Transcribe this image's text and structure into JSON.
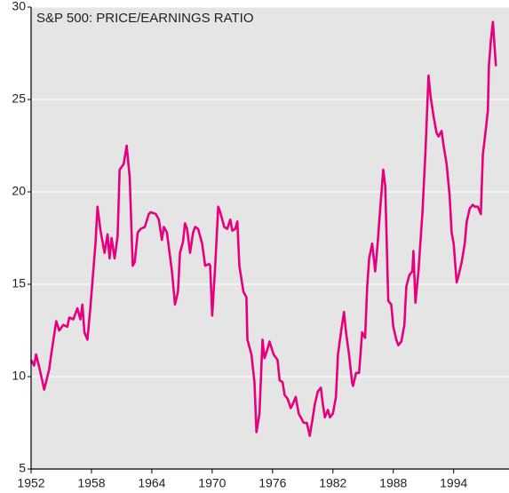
{
  "chart_data": {
    "type": "line",
    "title": "S&P 500: PRICE/EARNINGS RATIO",
    "x": [
      1952.0,
      1952.3,
      1952.5,
      1952.9,
      1953.3,
      1953.8,
      1954.0,
      1954.5,
      1954.8,
      1955.2,
      1955.6,
      1955.8,
      1956.2,
      1956.6,
      1956.9,
      1957.1,
      1957.3,
      1957.6,
      1957.9,
      1958.4,
      1958.6,
      1958.9,
      1959.3,
      1959.6,
      1959.8,
      1960.0,
      1960.3,
      1960.6,
      1960.8,
      1961.2,
      1961.5,
      1961.8,
      1962.1,
      1962.3,
      1962.6,
      1962.9,
      1963.3,
      1963.7,
      1963.9,
      1964.4,
      1964.7,
      1965.0,
      1965.2,
      1965.5,
      1966.0,
      1966.3,
      1966.6,
      1966.8,
      1967.1,
      1967.3,
      1967.5,
      1967.8,
      1968.1,
      1968.3,
      1968.6,
      1969.0,
      1969.3,
      1969.7,
      1969.8,
      1970.0,
      1970.3,
      1970.6,
      1970.8,
      1971.2,
      1971.5,
      1971.8,
      1972.0,
      1972.3,
      1972.5,
      1972.7,
      1973.1,
      1973.4,
      1973.5,
      1973.9,
      1974.2,
      1974.4,
      1974.7,
      1975.0,
      1975.2,
      1975.5,
      1975.7,
      1976.1,
      1976.5,
      1976.7,
      1977.0,
      1977.2,
      1977.5,
      1977.8,
      1978.0,
      1978.3,
      1978.6,
      1978.8,
      1979.1,
      1979.4,
      1979.7,
      1980.0,
      1980.2,
      1980.5,
      1980.8,
      1981.0,
      1981.2,
      1981.5,
      1981.7,
      1982.0,
      1982.3,
      1982.5,
      1982.8,
      1983.1,
      1983.3,
      1983.6,
      1983.9,
      1984.0,
      1984.3,
      1984.6,
      1984.9,
      1985.2,
      1985.4,
      1985.6,
      1985.9,
      1986.2,
      1986.4,
      1986.7,
      1987.0,
      1987.2,
      1987.5,
      1987.8,
      1988.0,
      1988.3,
      1988.5,
      1988.8,
      1989.1,
      1989.3,
      1989.6,
      1989.9,
      1990.0,
      1990.2,
      1990.5,
      1990.8,
      1990.9,
      1991.2,
      1991.5,
      1991.7,
      1992.0,
      1992.3,
      1992.5,
      1992.8,
      1993.0,
      1993.3,
      1993.6,
      1993.8,
      1994.0,
      1994.3,
      1994.5,
      1994.8,
      1995.1,
      1995.3,
      1995.6,
      1995.9,
      1996.1,
      1996.4,
      1996.7,
      1996.9,
      1997.2,
      1997.4,
      1997.5,
      1997.7,
      1997.9,
      1998.2
    ],
    "series": [
      {
        "name": "P/E ratio",
        "color": "#e6007e",
        "values": [
          10.9,
          10.6,
          11.2,
          10.3,
          9.3,
          10.4,
          11.2,
          13.0,
          12.5,
          12.8,
          12.7,
          13.2,
          13.1,
          13.7,
          13.1,
          13.9,
          12.4,
          12.0,
          13.8,
          17.2,
          19.2,
          17.9,
          16.7,
          17.7,
          16.4,
          17.5,
          16.4,
          17.6,
          21.2,
          21.5,
          22.5,
          20.8,
          16.0,
          16.2,
          17.8,
          18.0,
          18.1,
          18.8,
          18.9,
          18.8,
          18.5,
          17.4,
          18.1,
          17.8,
          15.7,
          13.9,
          14.6,
          16.7,
          17.3,
          18.3,
          18.0,
          16.7,
          17.8,
          18.1,
          18.0,
          17.2,
          16.0,
          16.1,
          16.0,
          13.3,
          16.0,
          19.2,
          18.9,
          18.1,
          18.0,
          18.5,
          17.9,
          18.0,
          18.4,
          16.0,
          14.6,
          14.3,
          12.0,
          11.2,
          9.7,
          7.0,
          8.0,
          12.0,
          11.0,
          11.5,
          11.9,
          11.2,
          10.9,
          9.8,
          9.7,
          9.0,
          8.8,
          8.3,
          8.5,
          8.9,
          8.0,
          7.8,
          7.5,
          7.5,
          6.8,
          7.8,
          8.5,
          9.2,
          9.4,
          8.5,
          7.8,
          8.2,
          7.8,
          8.0,
          8.9,
          11.2,
          12.4,
          13.5,
          12.4,
          11.2,
          9.7,
          9.5,
          10.2,
          10.2,
          12.4,
          12.1,
          14.8,
          16.4,
          17.2,
          15.7,
          16.9,
          19.1,
          21.2,
          20.3,
          14.1,
          13.9,
          12.7,
          12.0,
          11.7,
          11.9,
          12.8,
          14.9,
          15.5,
          15.7,
          16.8,
          14.0,
          15.7,
          18.1,
          18.9,
          22.2,
          26.3,
          25.2,
          24.1,
          23.2,
          23.0,
          23.3,
          22.5,
          21.5,
          19.8,
          17.8,
          17.2,
          15.1,
          15.5,
          16.2,
          17.2,
          18.4,
          19.1,
          19.3,
          19.2,
          19.2,
          18.8,
          22.0,
          23.4,
          24.4,
          26.8,
          28.2,
          29.2,
          26.8
        ]
      }
    ],
    "xlim": [
      1952,
      1999.5
    ],
    "xticks": [
      1952,
      1958,
      1964,
      1970,
      1976,
      1982,
      1988,
      1994
    ],
    "ylim": [
      5,
      30
    ],
    "yticks": [
      5,
      10,
      15,
      20,
      25,
      30
    ],
    "grid": true
  }
}
